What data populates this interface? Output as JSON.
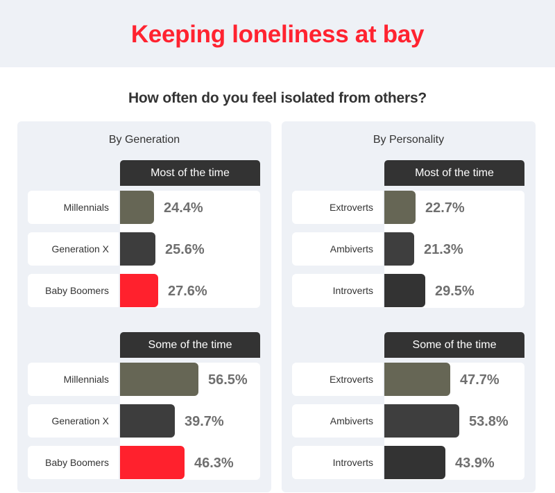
{
  "header": {
    "title": "Keeping loneliness at bay",
    "subtitle": "How often do you feel isolated from others?"
  },
  "panels": [
    {
      "title": "By Generation",
      "groups": [
        {
          "header": "Most of the time",
          "rows": [
            {
              "label": "Millennials",
              "value": "24.4%",
              "num": 24.4,
              "color": "#666655"
            },
            {
              "label": "Generation X",
              "value": "25.6%",
              "num": 25.6,
              "color": "#3d3d3d"
            },
            {
              "label": "Baby Boomers",
              "value": "27.6%",
              "num": 27.6,
              "color": "#ff212d"
            }
          ]
        },
        {
          "header": "Some of the time",
          "rows": [
            {
              "label": "Millennials",
              "value": "56.5%",
              "num": 56.5,
              "color": "#666655"
            },
            {
              "label": "Generation X",
              "value": "39.7%",
              "num": 39.7,
              "color": "#3d3d3d"
            },
            {
              "label": "Baby Boomers",
              "value": "46.3%",
              "num": 46.3,
              "color": "#ff212d"
            }
          ]
        }
      ]
    },
    {
      "title": "By Personality",
      "groups": [
        {
          "header": "Most of the time",
          "rows": [
            {
              "label": "Extroverts",
              "value": "22.7%",
              "num": 22.7,
              "color": "#666655"
            },
            {
              "label": "Ambiverts",
              "value": "21.3%",
              "num": 21.3,
              "color": "#3e3e3e"
            },
            {
              "label": "Introverts",
              "value": "29.5%",
              "num": 29.5,
              "color": "#333333"
            }
          ]
        },
        {
          "header": "Some of the time",
          "rows": [
            {
              "label": "Extroverts",
              "value": "47.7%",
              "num": 47.7,
              "color": "#666655"
            },
            {
              "label": "Ambiverts",
              "value": "53.8%",
              "num": 53.8,
              "color": "#3e3e3e"
            },
            {
              "label": "Introverts",
              "value": "43.9%",
              "num": 43.9,
              "color": "#333333"
            }
          ]
        }
      ]
    }
  ],
  "colors": {
    "title": "#ff2330",
    "band_bg": "#eef1f6",
    "header_bg": "#333333",
    "value_text": "#6f6f6f"
  },
  "chart_data": [
    {
      "type": "bar",
      "title": "How often do you feel isolated from others? — By Generation",
      "orientation": "horizontal",
      "categories": [
        "Millennials",
        "Generation X",
        "Baby Boomers"
      ],
      "series": [
        {
          "name": "Most of the time",
          "values": [
            24.4,
            25.6,
            27.6
          ]
        },
        {
          "name": "Some of the time",
          "values": [
            56.5,
            39.7,
            46.3
          ]
        }
      ],
      "xlabel": "",
      "ylabel": "",
      "unit": "%"
    },
    {
      "type": "bar",
      "title": "How often do you feel isolated from others? — By Personality",
      "orientation": "horizontal",
      "categories": [
        "Extroverts",
        "Ambiverts",
        "Introverts"
      ],
      "series": [
        {
          "name": "Most of the time",
          "values": [
            22.7,
            21.3,
            29.5
          ]
        },
        {
          "name": "Some of the time",
          "values": [
            47.7,
            53.8,
            43.9
          ]
        }
      ],
      "xlabel": "",
      "ylabel": "",
      "unit": "%"
    }
  ]
}
